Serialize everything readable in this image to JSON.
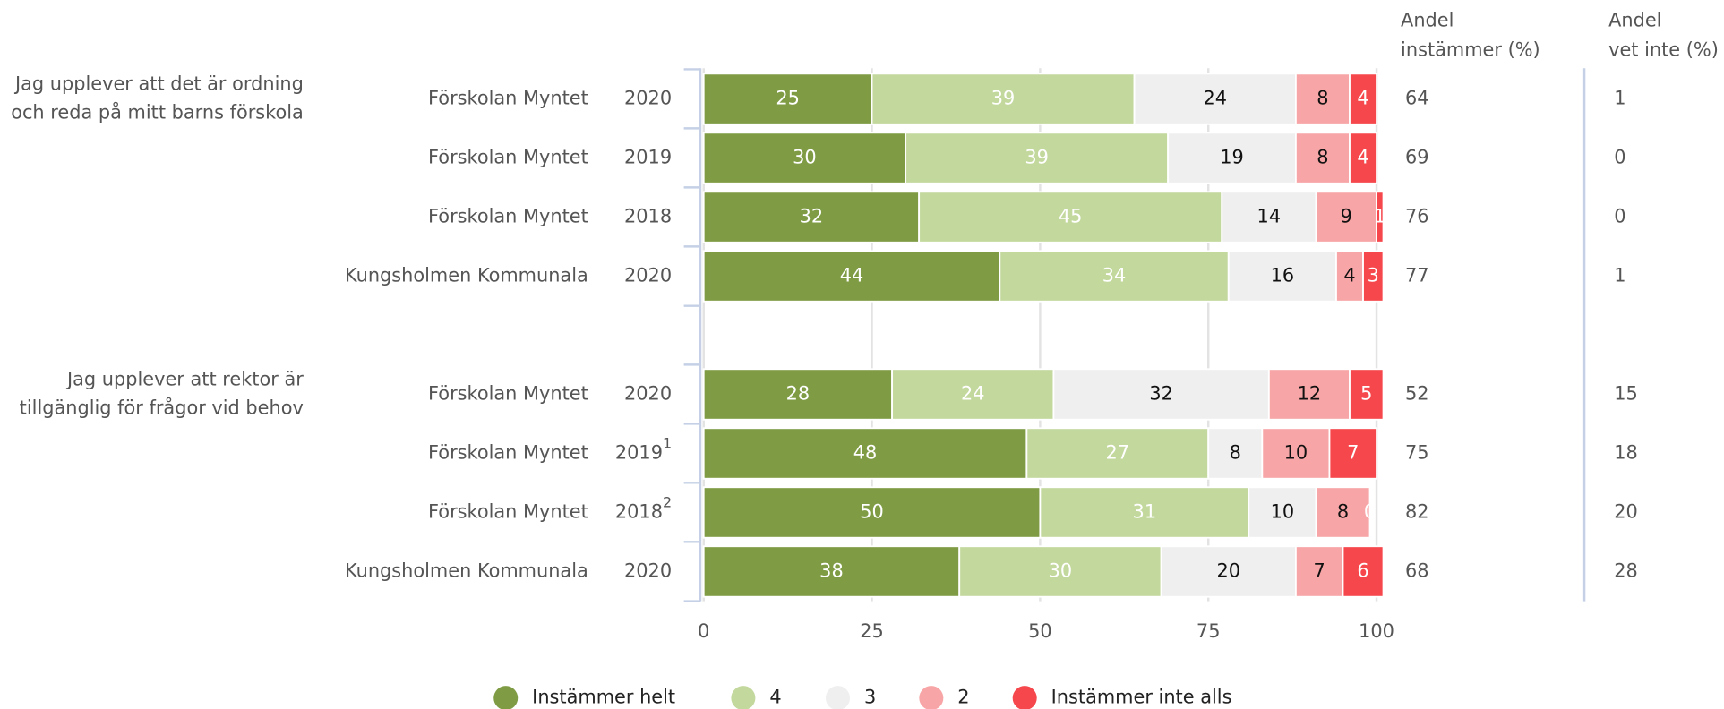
{
  "chart_data": {
    "type": "bar",
    "orientation": "horizontal",
    "stacked": true,
    "questions": [
      {
        "lines": [
          "Jag upplever att det är ordning",
          "och reda på mitt barns förskola"
        ]
      },
      {
        "lines": [
          "Jag upplever att rektor är",
          "tillgänglig för frågor vid behov"
        ]
      }
    ],
    "categories": [
      {
        "name": "Förskolan Myntet",
        "year": "2020"
      },
      {
        "name": "Förskolan Myntet",
        "year": "2019"
      },
      {
        "name": "Förskolan Myntet",
        "year": "2018"
      },
      {
        "name": "Kungsholmen Kommunala",
        "year": "2020"
      },
      null,
      {
        "name": "Förskolan Myntet",
        "year": "2020"
      },
      {
        "name": "Förskolan Myntet",
        "year": "2019",
        "note": "1"
      },
      {
        "name": "Förskolan Myntet",
        "year": "2018",
        "note": "2"
      },
      {
        "name": "Kungsholmen Kommunala",
        "year": "2020"
      }
    ],
    "series": [
      {
        "name": "Instämmer helt",
        "color": "#7f9c45",
        "values": [
          25,
          30,
          32,
          44,
          null,
          28,
          48,
          50,
          38
        ]
      },
      {
        "name": "4",
        "color": "#c3d89d",
        "values": [
          39,
          39,
          45,
          34,
          null,
          24,
          27,
          31,
          30
        ]
      },
      {
        "name": "3",
        "color": "#efefef",
        "values": [
          24,
          19,
          14,
          16,
          null,
          32,
          8,
          10,
          20
        ]
      },
      {
        "name": "2",
        "color": "#f7a5a6",
        "values": [
          8,
          8,
          9,
          4,
          null,
          12,
          10,
          8,
          7
        ]
      },
      {
        "name": "Instämmer inte alls",
        "color": "#f5474c",
        "values": [
          4,
          4,
          1,
          3,
          null,
          5,
          7,
          0,
          6
        ]
      }
    ],
    "columns": [
      {
        "title": [
          "Andel",
          "instämmer (%)"
        ],
        "values": [
          64,
          69,
          76,
          77,
          null,
          52,
          75,
          82,
          68
        ]
      },
      {
        "title": [
          "Andel",
          "vet inte (%)"
        ],
        "values": [
          1,
          0,
          0,
          1,
          null,
          15,
          18,
          20,
          28
        ]
      }
    ],
    "xlim": [
      0,
      100
    ],
    "xticks": [
      0,
      25,
      50,
      75,
      100
    ],
    "grid": true
  }
}
